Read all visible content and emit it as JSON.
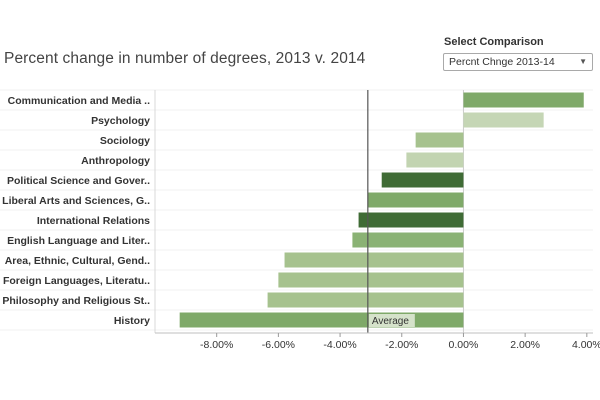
{
  "title": "Percent change in number of degrees, 2013 v. 2014",
  "selector": {
    "label": "Select Comparison",
    "value": "Percnt Chnge 2013-14",
    "icon": "chevron-down-icon"
  },
  "chart_data": {
    "type": "bar",
    "orientation": "horizontal",
    "title": "Percent change in number of degrees, 2013 v. 2014",
    "xlabel": "",
    "ylabel": "",
    "xlim": [
      -0.1,
      0.042
    ],
    "ticks": [
      -0.08,
      -0.06,
      -0.04,
      -0.02,
      0.0,
      0.02,
      0.04
    ],
    "tick_labels": [
      "-8.00%",
      "-6.00%",
      "-4.00%",
      "-2.00%",
      "0.00%",
      "2.00%",
      "4.00%"
    ],
    "grid": true,
    "categories": [
      "Communication and Media ..",
      "Psychology",
      "Sociology",
      "Anthropology",
      "Political Science and Gover..",
      "Liberal Arts and Sciences, G..",
      "International Relations",
      "English Language and Liter..",
      "Area, Ethnic, Cultural, Gend..",
      "Foreign Languages, Literatu..",
      "Philosophy and Religious St..",
      "History"
    ],
    "values": [
      0.039,
      0.026,
      -0.0155,
      -0.0185,
      -0.0265,
      -0.031,
      -0.034,
      -0.036,
      -0.058,
      -0.06,
      -0.0635,
      -0.092
    ],
    "colors": [
      "#7fa969",
      "#c5d6b5",
      "#a6c28e",
      "#c2d4b1",
      "#3f6b35",
      "#7fa969",
      "#3f6b35",
      "#8ab274",
      "#a6c28e",
      "#a6c28e",
      "#a6c28e",
      "#7fa969"
    ],
    "average": {
      "value": -0.031,
      "label": "Average"
    }
  }
}
